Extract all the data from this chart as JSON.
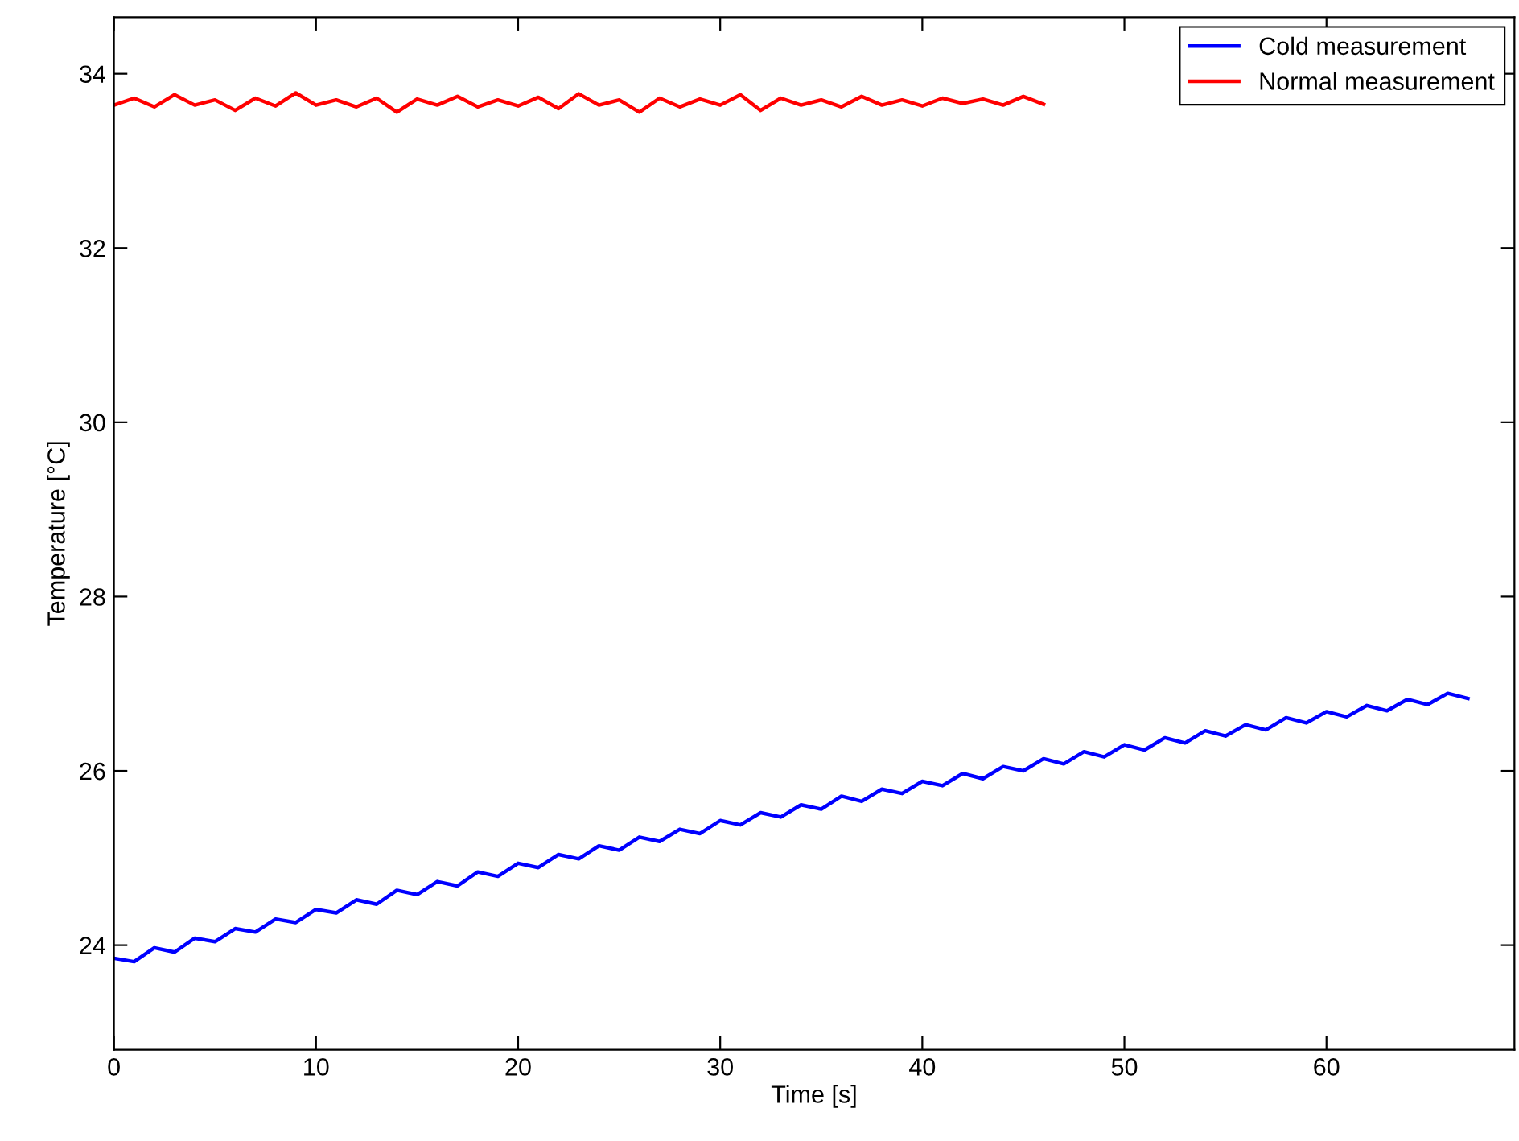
{
  "chart_data": {
    "type": "line",
    "xlabel": "Time [s]",
    "ylabel": "Temperature [°C]",
    "x": [
      0,
      1,
      2,
      3,
      4,
      5,
      6,
      7,
      8,
      9,
      10,
      11,
      12,
      13,
      14,
      15,
      16,
      17,
      18,
      19,
      20,
      21,
      22,
      23,
      24,
      25,
      26,
      27,
      28,
      29,
      30,
      31,
      32,
      33,
      34,
      35,
      36,
      37,
      38,
      39,
      40,
      41,
      42,
      43,
      44,
      45,
      46,
      47,
      48,
      49,
      50,
      51,
      52,
      53,
      54,
      55,
      56,
      57,
      58,
      59,
      60,
      61,
      62,
      63,
      64,
      65,
      66,
      67
    ],
    "series": [
      {
        "name": "Cold measurement",
        "color": "#0000ff",
        "values": [
          23.85,
          23.81,
          23.97,
          23.92,
          24.08,
          24.04,
          24.19,
          24.15,
          24.3,
          24.26,
          24.41,
          24.37,
          24.52,
          24.47,
          24.63,
          24.58,
          24.73,
          24.68,
          24.84,
          24.79,
          24.94,
          24.89,
          25.04,
          24.99,
          25.14,
          25.09,
          25.24,
          25.19,
          25.33,
          25.28,
          25.43,
          25.38,
          25.52,
          25.47,
          25.61,
          25.56,
          25.71,
          25.65,
          25.79,
          25.74,
          25.88,
          25.83,
          25.97,
          25.91,
          26.05,
          26.0,
          26.14,
          26.08,
          26.22,
          26.16,
          26.3,
          26.24,
          26.38,
          26.32,
          26.46,
          26.4,
          26.53,
          26.47,
          26.61,
          26.55,
          26.68,
          26.62,
          26.75,
          26.69,
          26.82,
          26.76,
          26.89,
          26.83
        ]
      },
      {
        "name": "Normal measurement",
        "color": "#ff0000",
        "values": [
          33.64,
          33.72,
          33.62,
          33.76,
          33.64,
          33.7,
          33.58,
          33.72,
          33.63,
          33.78,
          33.64,
          33.7,
          33.62,
          33.72,
          33.56,
          33.71,
          33.64,
          33.74,
          33.62,
          33.7,
          33.63,
          33.73,
          33.6,
          33.77,
          33.64,
          33.7,
          33.56,
          33.72,
          33.62,
          33.71,
          33.64,
          33.76,
          33.58,
          33.72,
          33.64,
          33.7,
          33.62,
          33.74,
          33.64,
          33.7,
          33.63,
          33.72,
          33.66,
          33.71,
          33.64,
          33.74,
          33.65,
          null,
          null,
          null,
          null,
          null,
          null,
          null,
          null,
          null,
          null,
          null,
          null,
          null,
          null,
          null,
          null,
          null,
          null,
          null,
          null,
          null
        ]
      }
    ],
    "xlim": [
      0,
      69.3
    ],
    "ylim": [
      22.8,
      34.65
    ],
    "xticks": [
      0,
      10,
      20,
      30,
      40,
      50,
      60
    ],
    "yticks": [
      24,
      26,
      28,
      30,
      32,
      34
    ],
    "legend": "top right",
    "grid": false,
    "marker": "none",
    "line_style": "solid"
  }
}
